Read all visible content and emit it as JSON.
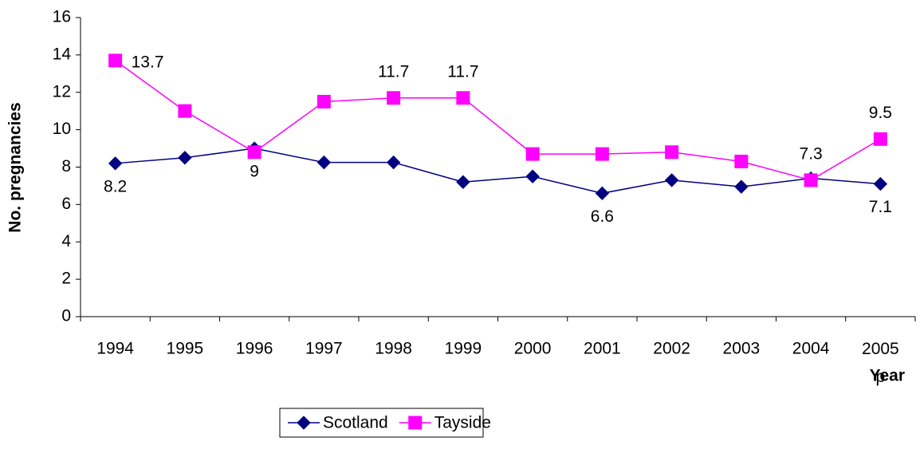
{
  "chart_data": {
    "type": "line",
    "categories": [
      "1994",
      "1995",
      "1996",
      "1997",
      "1998",
      "1999",
      "2000",
      "2001",
      "2002",
      "2003",
      "2004",
      "2005 p"
    ],
    "series": [
      {
        "name": "Scotland",
        "color": "#000080",
        "marker": "diamond",
        "values": [
          8.2,
          8.5,
          9.0,
          8.25,
          8.25,
          7.2,
          7.5,
          6.6,
          7.3,
          6.95,
          7.4,
          7.1
        ],
        "value_labels": [
          "8.2",
          null,
          "9",
          null,
          null,
          null,
          null,
          "6.6",
          null,
          null,
          null,
          "7.1"
        ]
      },
      {
        "name": "Tayside",
        "color": "#ff00ff",
        "marker": "square",
        "values": [
          13.7,
          11.0,
          8.8,
          11.5,
          11.7,
          11.7,
          8.7,
          8.7,
          8.8,
          8.3,
          7.3,
          9.5
        ],
        "value_labels": [
          "13.7",
          null,
          null,
          null,
          "11.7",
          "11.7",
          null,
          null,
          null,
          null,
          "7.3",
          "9.5"
        ]
      }
    ],
    "ylabel": "No. pregnancies",
    "xlabel": "Year",
    "ylim": [
      0,
      16
    ],
    "yticks": [
      0,
      2,
      4,
      6,
      8,
      10,
      12,
      14,
      16
    ],
    "grid": false,
    "legend": "bottom"
  }
}
